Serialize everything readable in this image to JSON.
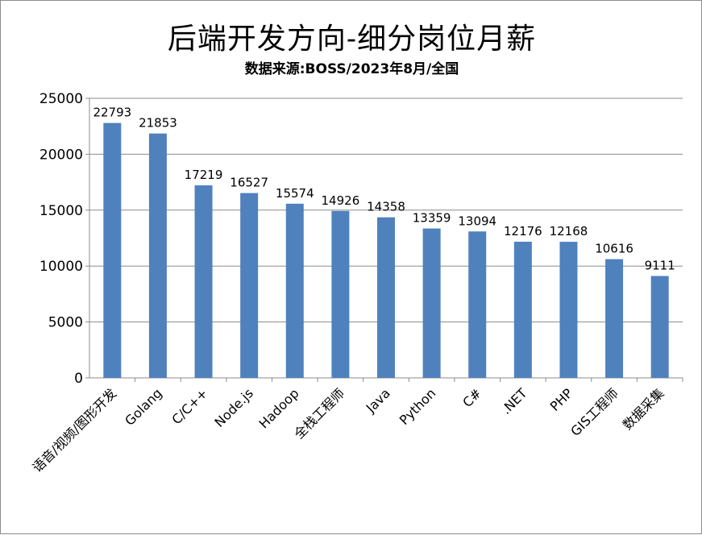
{
  "chart_data": {
    "type": "bar",
    "title": "后端开发方向-细分岗位月薪",
    "subtitle": "数据来源:BOSS/2023年8月/全国",
    "categories": [
      "语音/视频/图形开发",
      "Golang",
      "C/C++",
      "Node.js",
      "Hadoop",
      "全栈工程师",
      "Java",
      "Python",
      "C#",
      ".NET",
      "PHP",
      "GIS工程师",
      "数据采集"
    ],
    "values": [
      22793,
      21853,
      17219,
      16527,
      15574,
      14926,
      14358,
      13359,
      13094,
      12176,
      12168,
      10616,
      9111
    ],
    "ylim": [
      0,
      25000
    ],
    "yticks": [
      0,
      5000,
      10000,
      15000,
      20000,
      25000
    ],
    "grid": true,
    "bar_color": "#4f81bd",
    "xlabel": "",
    "ylabel": ""
  }
}
